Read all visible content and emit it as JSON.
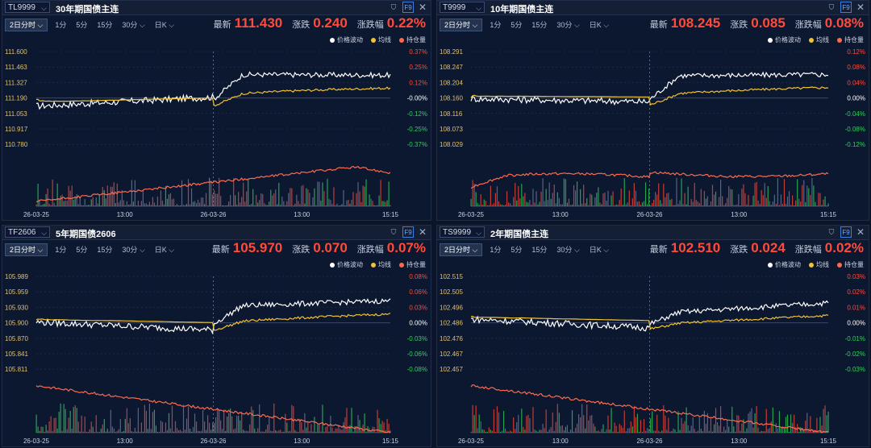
{
  "panels": [
    {
      "symbol": "TL9999",
      "title": "30年期国债主连",
      "timeframe_tabs": [
        "2日分时",
        "1分",
        "5分",
        "15分",
        "30分",
        "日K"
      ],
      "quote": {
        "last_label": "最新",
        "last": "111.430",
        "change_label": "涨跌",
        "change": "0.240",
        "pct_label": "涨跌幅",
        "pct": "0.22%"
      },
      "legend": [
        "价格波动",
        "均线",
        "持仓量"
      ],
      "y_left": [
        "111.600",
        "111.463",
        "111.327",
        "111.190",
        "111.053",
        "110.917",
        "110.780"
      ],
      "y_right": [
        "0.37%",
        "0.25%",
        "0.12%",
        "-0.00%",
        "-0.12%",
        "-0.25%",
        "-0.37%"
      ],
      "x_ticks": [
        "26-03-25",
        "13:00",
        "26-03-26",
        "13:00",
        "15:15"
      ]
    },
    {
      "symbol": "T9999",
      "title": "10年期国债主连",
      "timeframe_tabs": [
        "2日分时",
        "1分",
        "5分",
        "15分",
        "30分",
        "日K"
      ],
      "quote": {
        "last_label": "最新",
        "last": "108.245",
        "change_label": "涨跌",
        "change": "0.085",
        "pct_label": "涨跌幅",
        "pct": "0.08%"
      },
      "legend": [
        "价格波动",
        "均线",
        "持仓量"
      ],
      "y_left": [
        "108.291",
        "108.247",
        "108.204",
        "108.160",
        "108.116",
        "108.073",
        "108.029"
      ],
      "y_right": [
        "0.12%",
        "0.08%",
        "0.04%",
        "0.00%",
        "-0.04%",
        "-0.08%",
        "-0.12%"
      ],
      "x_ticks": [
        "26-03-25",
        "13:00",
        "26-03-26",
        "13:00",
        "15:15"
      ]
    },
    {
      "symbol": "TF2606",
      "title": "5年期国债2606",
      "timeframe_tabs": [
        "2日分时",
        "1分",
        "5分",
        "15分",
        "30分",
        "日K"
      ],
      "quote": {
        "last_label": "最新",
        "last": "105.970",
        "change_label": "涨跌",
        "change": "0.070",
        "pct_label": "涨跌幅",
        "pct": "0.07%"
      },
      "legend": [
        "价格波动",
        "均线",
        "持仓量"
      ],
      "y_left": [
        "105.989",
        "105.959",
        "105.930",
        "105.900",
        "105.870",
        "105.841",
        "105.811"
      ],
      "y_right": [
        "0.08%",
        "0.06%",
        "0.03%",
        "0.00%",
        "-0.03%",
        "-0.06%",
        "-0.08%"
      ],
      "x_ticks": [
        "26-03-25",
        "13:00",
        "26-03-26",
        "13:00",
        "15:15"
      ]
    },
    {
      "symbol": "TS9999",
      "title": "2年期国债主连",
      "timeframe_tabs": [
        "2日分时",
        "1分",
        "5分",
        "15分",
        "30分",
        "日K"
      ],
      "quote": {
        "last_label": "最新",
        "last": "102.510",
        "change_label": "涨跌",
        "change": "0.024",
        "pct_label": "涨跌幅",
        "pct": "0.02%"
      },
      "legend": [
        "价格波动",
        "均线",
        "持仓量"
      ],
      "y_left": [
        "102.515",
        "102.505",
        "102.496",
        "102.486",
        "102.476",
        "102.467",
        "102.457"
      ],
      "y_right": [
        "0.03%",
        "0.02%",
        "0.01%",
        "0.00%",
        "-0.01%",
        "-0.02%",
        "-0.03%"
      ],
      "x_ticks": [
        "26-03-25",
        "13:00",
        "26-03-26",
        "13:00",
        "15:15"
      ]
    }
  ],
  "colors": {
    "price": "#ffffff",
    "avg": "#f2c230",
    "oi": "#ff6a4d",
    "up": "#ff4b3a",
    "down": "#2fd15a",
    "accent": "#3b7de0"
  }
}
